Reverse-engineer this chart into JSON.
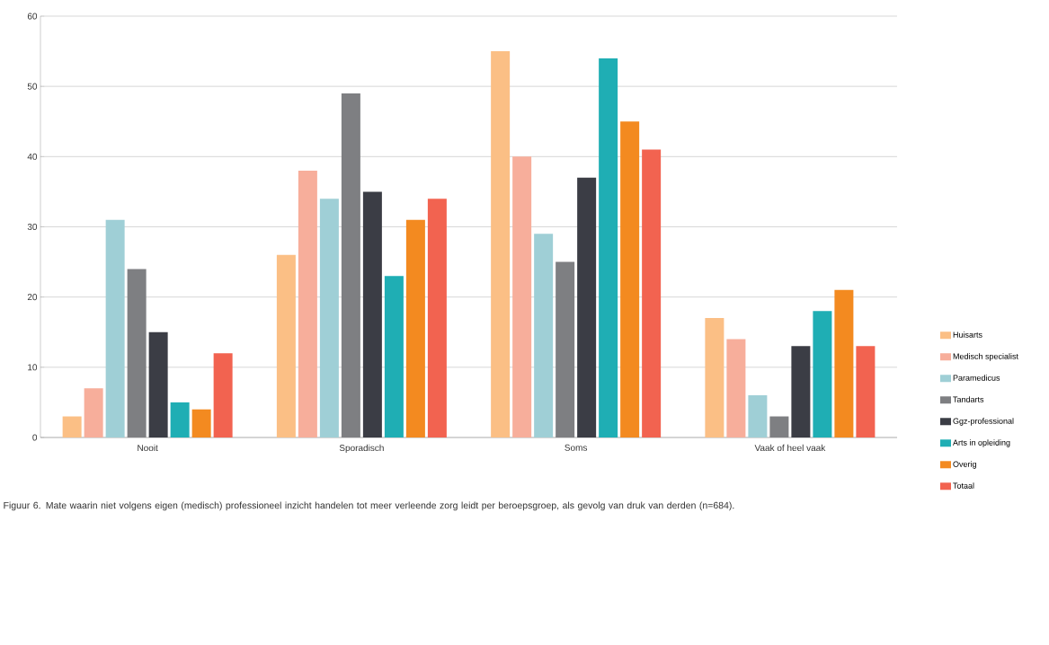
{
  "chart_data": {
    "type": "bar",
    "categories": [
      "Nooit",
      "Sporadisch",
      "Soms",
      "Vaak of heel vaak"
    ],
    "series": [
      {
        "name": "Huisarts",
        "color": "#fbbf85",
        "values": [
          3,
          26,
          55,
          17
        ]
      },
      {
        "name": "Medisch specialist",
        "color": "#f7ae9b",
        "values": [
          7,
          38,
          40,
          14
        ]
      },
      {
        "name": "Paramedicus",
        "color": "#9fcfd6",
        "values": [
          31,
          34,
          29,
          6
        ]
      },
      {
        "name": "Tandarts",
        "color": "#7e7f82",
        "values": [
          24,
          49,
          25,
          3
        ]
      },
      {
        "name": "Ggz-professional",
        "color": "#3b3d45",
        "values": [
          15,
          35,
          37,
          13
        ]
      },
      {
        "name": "Arts in opleiding",
        "color": "#1faeb4",
        "values": [
          5,
          23,
          54,
          18
        ]
      },
      {
        "name": "Overig",
        "color": "#f38a20",
        "values": [
          4,
          31,
          45,
          21
        ]
      },
      {
        "name": "Totaal",
        "color": "#f26350",
        "values": [
          12,
          34,
          41,
          13
        ]
      }
    ],
    "ylim": [
      0,
      60
    ],
    "yticks": [
      0,
      10,
      20,
      30,
      40,
      50,
      60
    ],
    "grid": "y",
    "legend": "right",
    "annotations": [
      "Figuur 6. Mate waarin niet volgens eigen (medisch) professioneel inzicht handelen tot meer verleende zorg leidt per beroepsgroep, als gevolg van druk van derden (n=684)."
    ]
  }
}
